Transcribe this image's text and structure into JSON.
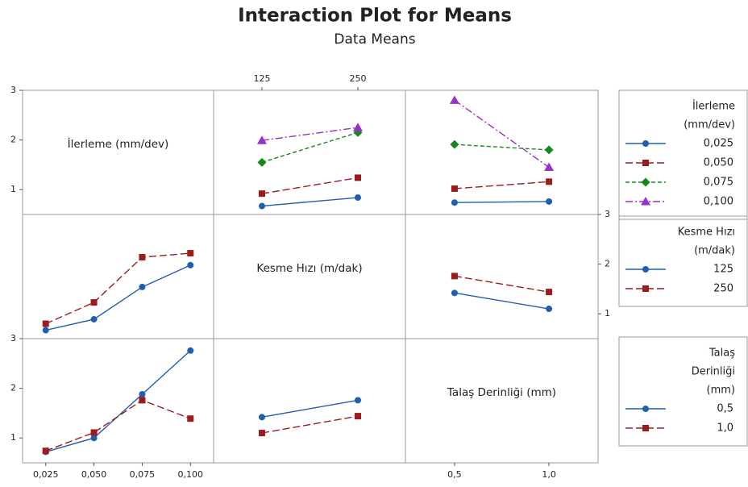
{
  "chart_data": {
    "type": "interaction",
    "title": "Interaction Plot for Means",
    "subtitle": "Data Means",
    "factors": [
      {
        "name": "İlerleme (mm/dev)",
        "legend_title": [
          "İlerleme",
          "(mm/dev)"
        ],
        "levels": [
          {
            "value": 0.025,
            "label": "0,025"
          },
          {
            "value": 0.05,
            "label": "0,050"
          },
          {
            "value": 0.075,
            "label": "0,075"
          },
          {
            "value": 0.1,
            "label": "0,100"
          }
        ],
        "xlim": [
          0.013,
          0.112
        ],
        "ylim": [
          0.5,
          3.0
        ],
        "yticks": [
          1,
          2,
          3
        ],
        "series": [
          {
            "color": "#1f5fb0",
            "marker": "circle",
            "dash": "solid",
            "values": {
              "1": [
                0.67,
                0.84
              ],
              "2": [
                0.74,
                0.76
              ]
            }
          },
          {
            "color": "#9c1c1c",
            "marker": "square",
            "dash": "long",
            "values": {
              "1": [
                0.92,
                1.24
              ],
              "2": [
                1.02,
                1.16
              ]
            }
          },
          {
            "color": "#16871b",
            "marker": "diamond",
            "dash": "short",
            "values": {
              "1": [
                1.55,
                2.15
              ],
              "2": [
                1.91,
                1.8
              ]
            }
          },
          {
            "color": "#9a2fc9",
            "marker": "triangle",
            "dash": "dashdot",
            "values": {
              "1": [
                1.99,
                2.25
              ],
              "2": [
                2.8,
                1.45
              ]
            }
          }
        ]
      },
      {
        "name": "Kesme Hızı (m/dak)",
        "legend_title": [
          "Kesme Hızı",
          "(m/dak)"
        ],
        "levels": [
          125,
          250
        ],
        "xlim": [
          62,
          312
        ],
        "ylim": [
          0.5,
          3.0
        ],
        "yticks": [
          1,
          2,
          3
        ],
        "series": [
          {
            "color": "#1f5fb0",
            "marker": "circle",
            "dash": "solid",
            "values": {
              "0": [
                0.67,
                0.89,
                1.54,
                1.98
              ],
              "2": [
                1.42,
                1.1
              ]
            }
          },
          {
            "color": "#9c1c1c",
            "marker": "square",
            "dash": "long",
            "values": {
              "0": [
                0.8,
                1.23,
                2.14,
                2.22
              ],
              "2": [
                1.76,
                1.44
              ]
            }
          }
        ]
      },
      {
        "name": "Talaş Derinliği (mm)",
        "legend_title": [
          "Talaş",
          "Derinliği",
          "(mm)"
        ],
        "levels": [
          {
            "value": 0.5,
            "label": "0,5"
          },
          {
            "value": 1.0,
            "label": "1,0"
          }
        ],
        "xlim": [
          0.24,
          1.26
        ],
        "ylim": [
          0.5,
          3.0
        ],
        "yticks": [
          1,
          2,
          3
        ],
        "series": [
          {
            "color": "#1f5fb0",
            "marker": "circle",
            "dash": "solid",
            "values": {
              "0": [
                0.72,
                1.0,
                1.88,
                2.76
              ],
              "1": [
                1.42,
                1.76
              ]
            }
          },
          {
            "color": "#9c1c1c",
            "marker": "square",
            "dash": "long",
            "values": {
              "0": [
                0.74,
                1.11,
                1.76,
                1.39
              ],
              "1": [
                1.1,
                1.44
              ]
            }
          }
        ]
      }
    ]
  }
}
